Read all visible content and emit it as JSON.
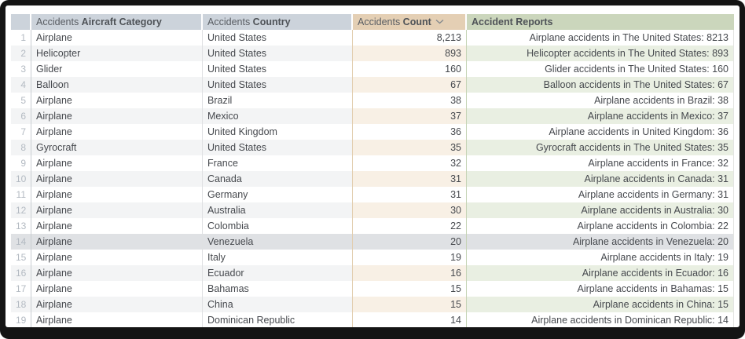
{
  "table": {
    "columns": {
      "index": {
        "prefix": "",
        "name": ""
      },
      "category": {
        "prefix": "Accidents ",
        "name": "Aircraft Category"
      },
      "country": {
        "prefix": "Accidents ",
        "name": "Country"
      },
      "count": {
        "prefix": "Accidents ",
        "name": "Count",
        "sort_direction": "descending"
      },
      "report": {
        "prefix": "",
        "name": "Accident Reports"
      }
    },
    "highlighted_row_index": 14,
    "rows": [
      {
        "index": 1,
        "category": "Airplane",
        "country": "United States",
        "count": "8,213",
        "report": "Airplane accidents in The United States: 8213"
      },
      {
        "index": 2,
        "category": "Helicopter",
        "country": "United States",
        "count": "893",
        "report": "Helicopter accidents in The United States: 893"
      },
      {
        "index": 3,
        "category": "Glider",
        "country": "United States",
        "count": "160",
        "report": "Glider accidents in The United States: 160"
      },
      {
        "index": 4,
        "category": "Balloon",
        "country": "United States",
        "count": "67",
        "report": "Balloon accidents in The United States: 67"
      },
      {
        "index": 5,
        "category": "Airplane",
        "country": "Brazil",
        "count": "38",
        "report": "Airplane accidents in Brazil: 38"
      },
      {
        "index": 6,
        "category": "Airplane",
        "country": "Mexico",
        "count": "37",
        "report": "Airplane accidents in Mexico: 37"
      },
      {
        "index": 7,
        "category": "Airplane",
        "country": "United Kingdom",
        "count": "36",
        "report": "Airplane accidents in United Kingdom: 36"
      },
      {
        "index": 8,
        "category": "Gyrocraft",
        "country": "United States",
        "count": "35",
        "report": "Gyrocraft accidents in The United States: 35"
      },
      {
        "index": 9,
        "category": "Airplane",
        "country": "France",
        "count": "32",
        "report": "Airplane accidents in France: 32"
      },
      {
        "index": 10,
        "category": "Airplane",
        "country": "Canada",
        "count": "31",
        "report": "Airplane accidents in Canada: 31"
      },
      {
        "index": 11,
        "category": "Airplane",
        "country": "Germany",
        "count": "31",
        "report": "Airplane accidents in Germany: 31"
      },
      {
        "index": 12,
        "category": "Airplane",
        "country": "Australia",
        "count": "30",
        "report": "Airplane accidents in Australia: 30"
      },
      {
        "index": 13,
        "category": "Airplane",
        "country": "Colombia",
        "count": "22",
        "report": "Airplane accidents in Colombia: 22"
      },
      {
        "index": 14,
        "category": "Airplane",
        "country": "Venezuela",
        "count": "20",
        "report": "Airplane accidents in Venezuela: 20"
      },
      {
        "index": 15,
        "category": "Airplane",
        "country": "Italy",
        "count": "19",
        "report": "Airplane accidents in Italy: 19"
      },
      {
        "index": 16,
        "category": "Airplane",
        "country": "Ecuador",
        "count": "16",
        "report": "Airplane accidents in Ecuador: 16"
      },
      {
        "index": 17,
        "category": "Airplane",
        "country": "Bahamas",
        "count": "15",
        "report": "Airplane accidents in Bahamas: 15"
      },
      {
        "index": 18,
        "category": "Airplane",
        "country": "China",
        "count": "15",
        "report": "Airplane accidents in China: 15"
      },
      {
        "index": 19,
        "category": "Airplane",
        "country": "Dominican Republic",
        "count": "14",
        "report": "Airplane accidents in Dominican Republic: 14"
      }
    ]
  },
  "colors": {
    "header_gray": "#ccd3db",
    "header_tan": "#e4cfb4",
    "header_green": "#cbd6bc",
    "row_tint_gray": "#f3f4f5",
    "row_tint_tan": "#f8f0e5",
    "row_tint_green": "#e9efe2",
    "highlight_gray": "#dfe1e4",
    "frame_black": "#141414"
  }
}
